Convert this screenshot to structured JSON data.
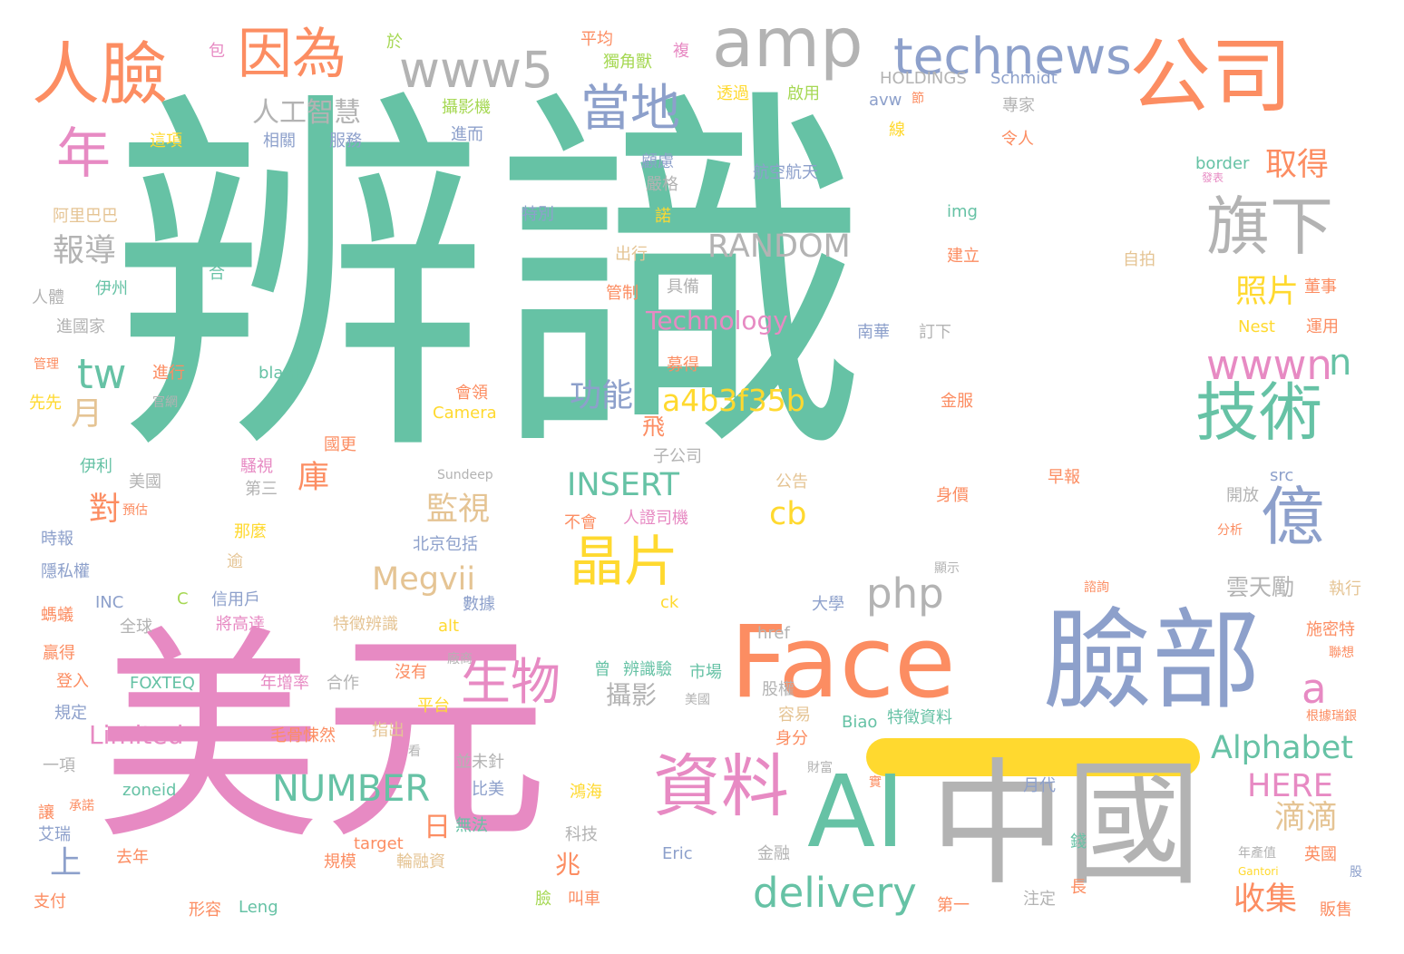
{
  "palette": {
    "teal": "#66c2a5",
    "orange": "#fc8d62",
    "blue": "#8da0cb",
    "pink": "#e78ac3",
    "green": "#a6d854",
    "yellow": "#ffd92f",
    "tan": "#e5c494",
    "gray": "#b3b3b3"
  },
  "words": [
    {
      "text": "辨識",
      "c": "teal",
      "s": 420
    },
    {
      "text": "美元",
      "c": "pink",
      "s": 250
    },
    {
      "text": "中國",
      "c": "gray",
      "s": 150
    },
    {
      "text": "臉部",
      "c": "blue",
      "s": 120
    },
    {
      "text": "Face",
      "c": "orange",
      "s": 110
    },
    {
      "text": "AI",
      "c": "teal",
      "s": 110
    },
    {
      "text": "公司",
      "c": "orange",
      "s": 90
    },
    {
      "text": "amp",
      "c": "gray",
      "s": 75
    },
    {
      "text": "人臉",
      "c": "orange",
      "s": 75
    },
    {
      "text": "因為",
      "c": "orange",
      "s": 60
    },
    {
      "text": "technews",
      "c": "blue",
      "s": 55
    },
    {
      "text": "www5",
      "c": "gray",
      "s": 55
    },
    {
      "text": "年",
      "c": "pink",
      "s": 60
    },
    {
      "text": "當地",
      "c": "blue",
      "s": 55
    },
    {
      "text": "旗下",
      "c": "gray",
      "s": 70
    },
    {
      "text": "技術",
      "c": "teal",
      "s": 70
    },
    {
      "text": "億",
      "c": "blue",
      "s": 70
    },
    {
      "text": "資料",
      "c": "pink",
      "s": 75
    },
    {
      "text": "晶片",
      "c": "yellow",
      "s": 60
    },
    {
      "text": "生物",
      "c": "pink",
      "s": 55
    },
    {
      "text": "wwwn",
      "c": "pink",
      "s": 45
    },
    {
      "text": "tw",
      "c": "teal",
      "s": 45
    },
    {
      "text": "delivery",
      "c": "teal",
      "s": 45
    },
    {
      "text": "php",
      "c": "gray",
      "s": 45
    },
    {
      "text": "NUMBER",
      "c": "teal",
      "s": 40
    },
    {
      "text": "Alphabet",
      "c": "teal",
      "s": 35
    },
    {
      "text": "HERE",
      "c": "pink",
      "s": 35
    },
    {
      "text": "a4b3f35b",
      "c": "yellow",
      "s": 33
    },
    {
      "text": "INSERT",
      "c": "teal",
      "s": 35
    },
    {
      "text": "RANDOM",
      "c": "gray",
      "s": 35
    },
    {
      "text": "Megvii",
      "c": "tan",
      "s": 35
    },
    {
      "text": "Technology",
      "c": "pink",
      "s": 28
    },
    {
      "text": "Limited",
      "c": "pink",
      "s": 28
    },
    {
      "text": "cb",
      "c": "yellow",
      "s": 35
    },
    {
      "text": "a",
      "c": "pink",
      "s": 45
    },
    {
      "text": "n",
      "c": "teal",
      "s": 40
    },
    {
      "text": "人工智慧",
      "c": "gray",
      "s": 30
    },
    {
      "text": "報導",
      "c": "gray",
      "s": 35
    },
    {
      "text": "取得",
      "c": "orange",
      "s": 35
    },
    {
      "text": "照片",
      "c": "yellow",
      "s": 35
    },
    {
      "text": "功能",
      "c": "blue",
      "s": 35
    },
    {
      "text": "監視",
      "c": "tan",
      "s": 35
    },
    {
      "text": "庫",
      "c": "orange",
      "s": 35
    },
    {
      "text": "對",
      "c": "orange",
      "s": 35
    },
    {
      "text": "月",
      "c": "tan",
      "s": 35
    },
    {
      "text": "收集",
      "c": "orange",
      "s": 35
    },
    {
      "text": "滴滴",
      "c": "tan",
      "s": 35
    },
    {
      "text": "日",
      "c": "orange",
      "s": 30
    },
    {
      "text": "兆",
      "c": "orange",
      "s": 28
    },
    {
      "text": "上",
      "c": "blue",
      "s": 35
    },
    {
      "text": "攝影",
      "c": "gray",
      "s": 28
    },
    {
      "text": "雲天勵",
      "c": "gray",
      "s": 25
    },
    {
      "text": "飛",
      "c": "orange",
      "s": 25
    },
    {
      "text": "HOLDINGS",
      "c": "gray",
      "s": 18
    },
    {
      "text": "Schmidt",
      "c": "blue",
      "s": 18
    },
    {
      "text": "於",
      "c": "green",
      "s": 18
    },
    {
      "text": "平均",
      "c": "orange",
      "s": 18
    },
    {
      "text": "複",
      "c": "pink",
      "s": 18
    },
    {
      "text": "包",
      "c": "pink",
      "s": 18
    },
    {
      "text": "獨角獸",
      "c": "green",
      "s": 18
    },
    {
      "text": "攝影機",
      "c": "green",
      "s": 18
    },
    {
      "text": "透過",
      "c": "yellow",
      "s": 18
    },
    {
      "text": "啟用",
      "c": "green",
      "s": 18
    },
    {
      "text": "avw",
      "c": "blue",
      "s": 18
    },
    {
      "text": "節",
      "c": "orange",
      "s": 14
    },
    {
      "text": "專家",
      "c": "gray",
      "s": 18
    },
    {
      "text": "進而",
      "c": "blue",
      "s": 18
    },
    {
      "text": "令人",
      "c": "orange",
      "s": 18
    },
    {
      "text": "線",
      "c": "yellow",
      "s": 18
    },
    {
      "text": "這項",
      "c": "yellow",
      "s": 18
    },
    {
      "text": "相關",
      "c": "blue",
      "s": 18
    },
    {
      "text": "服務",
      "c": "blue",
      "s": 18
    },
    {
      "text": "顧慮",
      "c": "blue",
      "s": 18
    },
    {
      "text": "嚴格",
      "c": "gray",
      "s": 18
    },
    {
      "text": "航空航天",
      "c": "blue",
      "s": 18
    },
    {
      "text": "border",
      "c": "teal",
      "s": 18
    },
    {
      "text": "發表",
      "c": "pink",
      "s": 12
    },
    {
      "text": "阿里巴巴",
      "c": "tan",
      "s": 18
    },
    {
      "text": "特別",
      "c": "blue",
      "s": 18
    },
    {
      "text": "諾",
      "c": "yellow",
      "s": 18
    },
    {
      "text": "img",
      "c": "teal",
      "s": 18
    },
    {
      "text": "合",
      "c": "teal",
      "s": 18
    },
    {
      "text": "出行",
      "c": "tan",
      "s": 18
    },
    {
      "text": "建立",
      "c": "orange",
      "s": 18
    },
    {
      "text": "自拍",
      "c": "tan",
      "s": 18
    },
    {
      "text": "伊州",
      "c": "teal",
      "s": 18
    },
    {
      "text": "管制",
      "c": "orange",
      "s": 18
    },
    {
      "text": "具備",
      "c": "gray",
      "s": 18
    },
    {
      "text": "董事",
      "c": "orange",
      "s": 18
    },
    {
      "text": "人體",
      "c": "gray",
      "s": 18
    },
    {
      "text": "進國家",
      "c": "gray",
      "s": 18
    },
    {
      "text": "南華",
      "c": "blue",
      "s": 18
    },
    {
      "text": "訂下",
      "c": "gray",
      "s": 18
    },
    {
      "text": "Nest",
      "c": "yellow",
      "s": 18
    },
    {
      "text": "運用",
      "c": "orange",
      "s": 18
    },
    {
      "text": "管理",
      "c": "orange",
      "s": 14
    },
    {
      "text": "進行",
      "c": "orange",
      "s": 18
    },
    {
      "text": "blank",
      "c": "teal",
      "s": 18
    },
    {
      "text": "募得",
      "c": "orange",
      "s": 18
    },
    {
      "text": "先先",
      "c": "yellow",
      "s": 18
    },
    {
      "text": "官網",
      "c": "gray",
      "s": 14
    },
    {
      "text": "會領",
      "c": "orange",
      "s": 18
    },
    {
      "text": "Camera",
      "c": "yellow",
      "s": 18
    },
    {
      "text": "金服",
      "c": "orange",
      "s": 18
    },
    {
      "text": "國更",
      "c": "orange",
      "s": 18
    },
    {
      "text": "伊利",
      "c": "teal",
      "s": 18
    },
    {
      "text": "騷視",
      "c": "pink",
      "s": 18
    },
    {
      "text": "子公司",
      "c": "gray",
      "s": 18
    },
    {
      "text": "Sundeep",
      "c": "gray",
      "s": 14
    },
    {
      "text": "美國",
      "c": "gray",
      "s": 18
    },
    {
      "text": "第三",
      "c": "gray",
      "s": 18
    },
    {
      "text": "公告",
      "c": "tan",
      "s": 18
    },
    {
      "text": "早報",
      "c": "orange",
      "s": 18
    },
    {
      "text": "src",
      "c": "blue",
      "s": 18
    },
    {
      "text": "預估",
      "c": "orange",
      "s": 14
    },
    {
      "text": "身價",
      "c": "orange",
      "s": 18
    },
    {
      "text": "開放",
      "c": "gray",
      "s": 18
    },
    {
      "text": "時報",
      "c": "blue",
      "s": 18
    },
    {
      "text": "那麼",
      "c": "yellow",
      "s": 18
    },
    {
      "text": "不會",
      "c": "orange",
      "s": 18
    },
    {
      "text": "人證司機",
      "c": "pink",
      "s": 18
    },
    {
      "text": "分析",
      "c": "orange",
      "s": 14
    },
    {
      "text": "北京包括",
      "c": "blue",
      "s": 18
    },
    {
      "text": "隱私權",
      "c": "blue",
      "s": 18
    },
    {
      "text": "逾",
      "c": "tan",
      "s": 18
    },
    {
      "text": "顯示",
      "c": "gray",
      "s": 14
    },
    {
      "text": "信用戶",
      "c": "blue",
      "s": 18
    },
    {
      "text": "數據",
      "c": "blue",
      "s": 18
    },
    {
      "text": "INC",
      "c": "blue",
      "s": 18
    },
    {
      "text": "C",
      "c": "green",
      "s": 18
    },
    {
      "text": "ck",
      "c": "yellow",
      "s": 18
    },
    {
      "text": "諮詢",
      "c": "orange",
      "s": 14
    },
    {
      "text": "執行",
      "c": "tan",
      "s": 18
    },
    {
      "text": "大學",
      "c": "blue",
      "s": 18
    },
    {
      "text": "螞蟻",
      "c": "orange",
      "s": 18
    },
    {
      "text": "全球",
      "c": "gray",
      "s": 18
    },
    {
      "text": "將高達",
      "c": "pink",
      "s": 18
    },
    {
      "text": "特徵辨識",
      "c": "tan",
      "s": 18
    },
    {
      "text": "alt",
      "c": "yellow",
      "s": 18
    },
    {
      "text": "施密特",
      "c": "orange",
      "s": 18
    },
    {
      "text": "href",
      "c": "gray",
      "s": 18
    },
    {
      "text": "贏得",
      "c": "orange",
      "s": 18
    },
    {
      "text": "廠商",
      "c": "gray",
      "s": 14
    },
    {
      "text": "聯想",
      "c": "orange",
      "s": 14
    },
    {
      "text": "沒有",
      "c": "orange",
      "s": 18
    },
    {
      "text": "曾",
      "c": "teal",
      "s": 18
    },
    {
      "text": "辨識驗",
      "c": "teal",
      "s": 18
    },
    {
      "text": "市場",
      "c": "teal",
      "s": 18
    },
    {
      "text": "登入",
      "c": "orange",
      "s": 18
    },
    {
      "text": "FOXTEQ",
      "c": "teal",
      "s": 18
    },
    {
      "text": "年增率",
      "c": "pink",
      "s": 18
    },
    {
      "text": "合作",
      "c": "gray",
      "s": 18
    },
    {
      "text": "平台",
      "c": "yellow",
      "s": 18
    },
    {
      "text": "美國",
      "c": "gray",
      "s": 14
    },
    {
      "text": "股權",
      "c": "gray",
      "s": 18
    },
    {
      "text": "容易",
      "c": "tan",
      "s": 18
    },
    {
      "text": "根據瑞銀",
      "c": "orange",
      "s": 14
    },
    {
      "text": "規定",
      "c": "blue",
      "s": 18
    },
    {
      "text": "毛骨悚然",
      "c": "orange",
      "s": 18
    },
    {
      "text": "指出",
      "c": "tan",
      "s": 18
    },
    {
      "text": "Biao",
      "c": "teal",
      "s": 18
    },
    {
      "text": "特徵資料",
      "c": "teal",
      "s": 18
    },
    {
      "text": "身分",
      "c": "orange",
      "s": 18
    },
    {
      "text": "一項",
      "c": "gray",
      "s": 18
    },
    {
      "text": "看",
      "c": "gray",
      "s": 14
    },
    {
      "text": "並未針",
      "c": "gray",
      "s": 18
    },
    {
      "text": "承諾",
      "c": "orange",
      "s": 14
    },
    {
      "text": "財富",
      "c": "gray",
      "s": 14
    },
    {
      "text": "實",
      "c": "orange",
      "s": 14
    },
    {
      "text": "zoneid",
      "c": "teal",
      "s": 18
    },
    {
      "text": "比美",
      "c": "blue",
      "s": 18
    },
    {
      "text": "鴻海",
      "c": "yellow",
      "s": 18
    },
    {
      "text": "月代",
      "c": "blue",
      "s": 18
    },
    {
      "text": "讓",
      "c": "orange",
      "s": 18
    },
    {
      "text": "無法",
      "c": "teal",
      "s": 18
    },
    {
      "text": "艾瑞",
      "c": "blue",
      "s": 18
    },
    {
      "text": "target",
      "c": "orange",
      "s": 18
    },
    {
      "text": "科技",
      "c": "gray",
      "s": 18
    },
    {
      "text": "錢",
      "c": "teal",
      "s": 18
    },
    {
      "text": "年產值",
      "c": "gray",
      "s": 14
    },
    {
      "text": "英國",
      "c": "orange",
      "s": 18
    },
    {
      "text": "去年",
      "c": "orange",
      "s": 18
    },
    {
      "text": "規模",
      "c": "orange",
      "s": 18
    },
    {
      "text": "輪融資",
      "c": "tan",
      "s": 18
    },
    {
      "text": "Eric",
      "c": "blue",
      "s": 18
    },
    {
      "text": "金融",
      "c": "gray",
      "s": 18
    },
    {
      "text": "Gantori",
      "c": "yellow",
      "s": 12
    },
    {
      "text": "股",
      "c": "blue",
      "s": 14
    },
    {
      "text": "支付",
      "c": "orange",
      "s": 18
    },
    {
      "text": "臉",
      "c": "green",
      "s": 18
    },
    {
      "text": "叫車",
      "c": "orange",
      "s": 18
    },
    {
      "text": "形容",
      "c": "orange",
      "s": 18
    },
    {
      "text": "Leng",
      "c": "teal",
      "s": 18
    },
    {
      "text": "第一",
      "c": "orange",
      "s": 18
    },
    {
      "text": "注定",
      "c": "gray",
      "s": 18
    },
    {
      "text": "長",
      "c": "orange",
      "s": 18
    },
    {
      "text": "販售",
      "c": "orange",
      "s": 18
    }
  ]
}
